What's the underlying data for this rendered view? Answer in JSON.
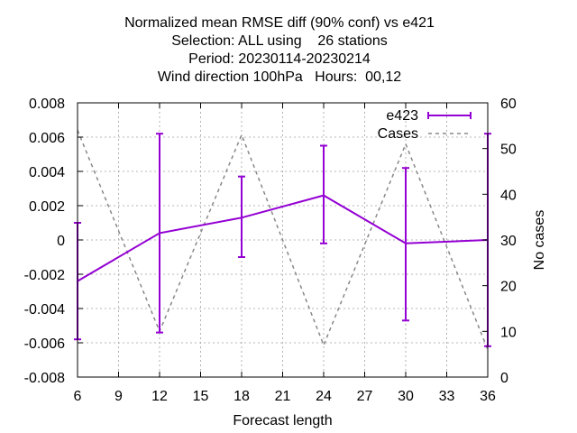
{
  "chart_data": {
    "type": "line",
    "title_lines": [
      "Normalized mean RMSE diff (90% conf) vs e421",
      "Selection: ALL using    26 stations",
      "Period: 20230114-20230214",
      "Wind direction 100hPa   Hours:  00,12"
    ],
    "xlabel": "Forecast length",
    "ylabel": "",
    "y2label": "No cases",
    "xlim": [
      6,
      36
    ],
    "ylim": [
      -0.008,
      0.008
    ],
    "y2lim": [
      0,
      60
    ],
    "xticks": [
      6,
      9,
      12,
      15,
      18,
      21,
      24,
      27,
      30,
      33,
      36
    ],
    "xtick_labels": [
      "6",
      "9",
      "12",
      "15",
      "18",
      "21",
      "24",
      "27",
      "30",
      "33",
      "36"
    ],
    "yticks": [
      -0.008,
      -0.006,
      -0.004,
      -0.002,
      0,
      0.002,
      0.004,
      0.006,
      0.008
    ],
    "ytick_labels": [
      "-0.008",
      "-0.006",
      "-0.004",
      "-0.002",
      "0",
      "0.002",
      "0.004",
      "0.006",
      "0.008"
    ],
    "y2ticks": [
      0,
      10,
      20,
      30,
      40,
      50,
      60
    ],
    "y2tick_labels": [
      "0",
      "10",
      "20",
      "30",
      "40",
      "50",
      "60"
    ],
    "grid": true,
    "legend_position": "top-right",
    "series": [
      {
        "name": "e423",
        "color": "#9400d3",
        "style": "line-errorbars",
        "axis": "y1",
        "x": [
          6,
          12,
          18,
          24,
          30,
          36
        ],
        "y": [
          -0.0024,
          0.0004,
          0.0013,
          0.0026,
          -0.0002,
          0.0
        ],
        "err_low": [
          -0.0058,
          -0.0054,
          -0.001,
          -0.0002,
          -0.0047,
          -0.0062
        ],
        "err_high": [
          0.001,
          0.0062,
          0.0037,
          0.0055,
          0.0042,
          0.0062
        ]
      },
      {
        "name": "Cases",
        "color": "#888888",
        "style": "dashed",
        "axis": "y2",
        "x": [
          6,
          12,
          18,
          24,
          30,
          36
        ],
        "y": [
          54,
          10,
          53,
          7,
          51,
          6
        ]
      }
    ]
  }
}
